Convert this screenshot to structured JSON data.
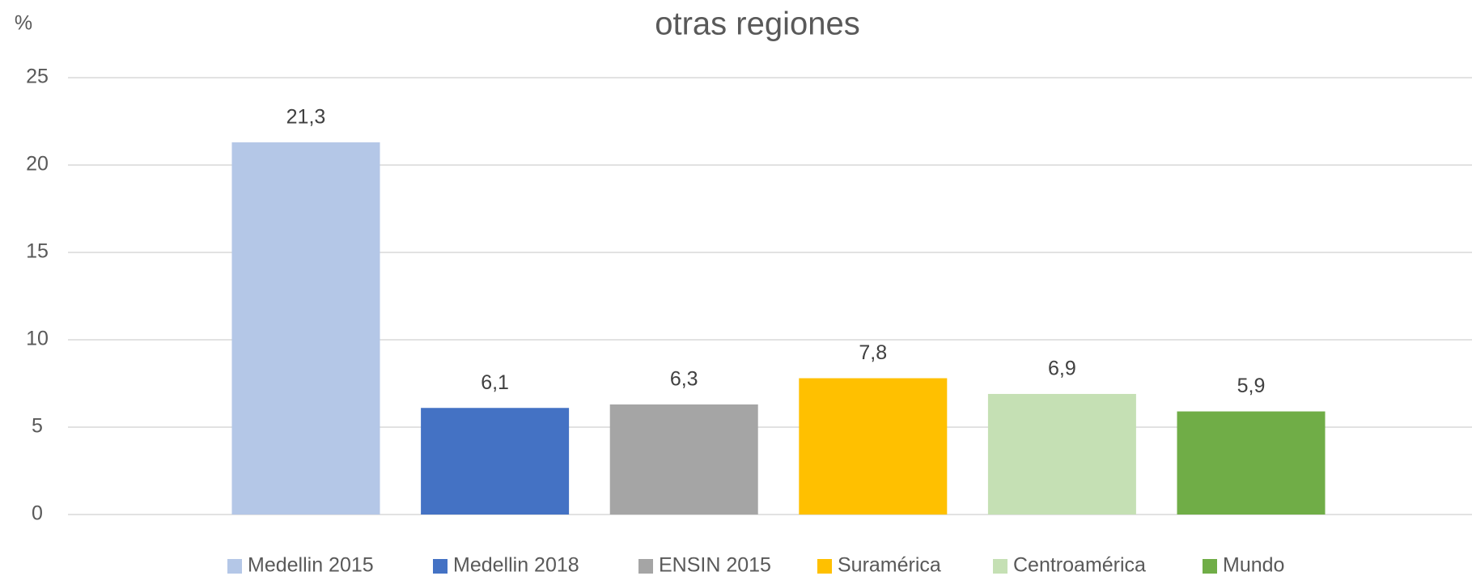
{
  "chart_data": {
    "type": "bar",
    "title": "otras regiones",
    "y_label": "%",
    "series": [
      {
        "name": "Medellin 2015",
        "color": "#b4c7e7",
        "values": [
          21.3
        ],
        "value_labels": [
          "21,3"
        ]
      },
      {
        "name": "Medellin 2018",
        "color": "#4472c4",
        "values": [
          6.1
        ],
        "value_labels": [
          "6,1"
        ]
      },
      {
        "name": "ENSIN 2015",
        "color": "#a5a5a5",
        "values": [
          6.3
        ],
        "value_labels": [
          "6,3"
        ]
      },
      {
        "name": "Suramérica",
        "color": "#ffc000",
        "values": [
          7.8
        ],
        "value_labels": [
          "7,8"
        ]
      },
      {
        "name": "Centroamérica",
        "color": "#c5e0b4",
        "values": [
          6.9
        ],
        "value_labels": [
          "6,9"
        ]
      },
      {
        "name": "Mundo",
        "color": "#70ad47",
        "values": [
          5.9
        ],
        "value_labels": [
          "5,9"
        ]
      }
    ],
    "ylim": [
      0,
      25
    ],
    "yticks": [
      0,
      5,
      10,
      15,
      20,
      25
    ],
    "grid": true,
    "legend": "bottom"
  }
}
